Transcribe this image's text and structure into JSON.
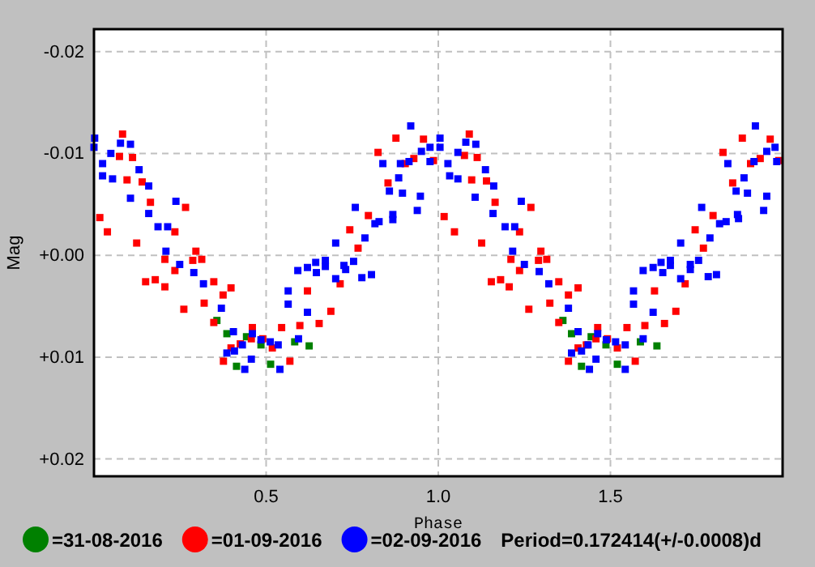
{
  "chart_data": {
    "type": "scatter",
    "xlabel": "Phase",
    "ylabel": "Mag",
    "xlim": [
      0,
      2
    ],
    "ylim": [
      0.0217,
      -0.0222
    ],
    "xticks": [
      0.5,
      {
        "value": 1,
        "label": "1.0"
      },
      1.5
    ],
    "yticks": [
      {
        "value": -0.02,
        "label": "-0.02"
      },
      {
        "value": -0.01,
        "label": "-0.01"
      },
      {
        "value": 0,
        "label": "+0.00"
      },
      {
        "value": 0.01,
        "label": "+0.01"
      },
      {
        "value": 0.02,
        "label": "+0.02"
      }
    ],
    "grid": true,
    "legend": "bottom",
    "marker": "square",
    "annotations": [
      "Period=0.172414(+/-0.0008)d"
    ],
    "series": [
      {
        "name": "=31-08-2016",
        "color": "#008000",
        "x": [
          0.357,
          0.386,
          0.443,
          0.485,
          0.414,
          0.513,
          0.583,
          0.625,
          1.362,
          1.387,
          1.444,
          1.487,
          1.416,
          1.52,
          1.587,
          1.635
        ],
        "values": [
          0.0064,
          0.0077,
          0.008,
          0.0088,
          0.0109,
          0.0107,
          0.0085,
          0.0089,
          0.0064,
          0.0077,
          0.008,
          0.0088,
          0.0109,
          0.0107,
          0.0085,
          0.0089
        ]
      },
      {
        "name": "=01-09-2016",
        "color": "#ff0000",
        "x": [
          0.083,
          0.074,
          0.112,
          0.096,
          0.14,
          0.164,
          0.266,
          0.017,
          0.039,
          0.124,
          0.235,
          0.296,
          0.313,
          0.287,
          0.206,
          0.235,
          0.348,
          0.398,
          0.375,
          0.15,
          0.178,
          0.206,
          0.261,
          0.32,
          0.348,
          0.46,
          0.457,
          0.49,
          0.518,
          0.425,
          0.398,
          0.376,
          0.545,
          0.569,
          0.598,
          0.62,
          0.654,
          0.715,
          0.688,
          0.743,
          0.767,
          0.797,
          0.854,
          0.825,
          0.877,
          0.957,
          0.904,
          0.929,
          0.986,
          1.09,
          1.076,
          1.113,
          1.097,
          1.14,
          1.165,
          1.017,
          1.047,
          1.126,
          1.269,
          1.236,
          1.211,
          1.236,
          1.181,
          1.154,
          1.206,
          1.298,
          1.291,
          1.315,
          1.263,
          1.324,
          1.35,
          1.406,
          1.378,
          1.35,
          1.378,
          1.406,
          1.43,
          1.463,
          1.458,
          1.491,
          1.52,
          1.548,
          1.572,
          1.6,
          1.628,
          1.657,
          1.69,
          1.717,
          1.77,
          1.746,
          1.798,
          1.855,
          1.827,
          1.883,
          1.964,
          1.907,
          1.935,
          1.989
        ],
        "values": [
          -0.0119,
          -0.0097,
          -0.0096,
          -0.0074,
          -0.0072,
          -0.0052,
          -0.0047,
          -0.0037,
          -0.0023,
          -0.0012,
          -0.0023,
          -0.0004,
          0.0004,
          0.0005,
          0.0004,
          0.0015,
          0.0026,
          0.0032,
          0.0039,
          0.0026,
          0.0024,
          0.0031,
          0.0053,
          0.0047,
          0.0066,
          0.0071,
          0.0082,
          0.0082,
          0.0091,
          0.0087,
          0.0091,
          0.0104,
          0.0071,
          0.0104,
          0.0069,
          0.0035,
          0.0067,
          0.0028,
          0.0055,
          -0.0025,
          -0.0007,
          -0.0039,
          -0.0071,
          -0.0101,
          -0.0115,
          -0.0114,
          -0.009,
          -0.0095,
          -0.0093,
          -0.0119,
          -0.0098,
          -0.0096,
          -0.0074,
          -0.0073,
          -0.0052,
          -0.0038,
          -0.0023,
          -0.0012,
          -0.0047,
          -0.0023,
          0.0004,
          0.0015,
          0.0024,
          0.0026,
          0.0031,
          -0.0004,
          0.0005,
          0.0004,
          0.0053,
          0.0047,
          0.0026,
          0.0032,
          0.0039,
          0.0066,
          0.0104,
          0.0091,
          0.0088,
          0.0071,
          0.0082,
          0.0082,
          0.0091,
          0.0071,
          0.0104,
          0.0069,
          0.0035,
          0.0067,
          0.0055,
          0.0028,
          -0.0007,
          -0.0025,
          -0.0039,
          -0.0071,
          -0.0101,
          -0.0115,
          -0.0114,
          -0.009,
          -0.0095,
          -0.0093
        ]
      },
      {
        "name": "=02-09-2016",
        "color": "#0000ff",
        "x": [
          0.002,
          0,
          0.049,
          0.077,
          0.106,
          0.025,
          0.025,
          0.054,
          0.131,
          0.159,
          0.106,
          0.159,
          0.238,
          0.186,
          0.214,
          0.209,
          0.249,
          0.29,
          0.318,
          0.37,
          0.405,
          0.386,
          0.408,
          0.431,
          0.46,
          0.485,
          0.512,
          0.457,
          0.438,
          0.535,
          0.54,
          0.564,
          0.564,
          0.592,
          0.62,
          0.644,
          0.646,
          0.62,
          0.594,
          0.702,
          0.672,
          0.672,
          0.702,
          0.726,
          0.731,
          0.754,
          0.778,
          0.806,
          0.787,
          0.759,
          0.816,
          0.828,
          0.868,
          0.868,
          0.839,
          0.858,
          0.885,
          0.896,
          0.92,
          0.951,
          0.976,
          1.005,
          1.005,
          0.89,
          0.915,
          0.976,
          0.939,
          0.948,
          1.028,
          1.033,
          1.057,
          1.057,
          1.08,
          1.109,
          1.107,
          1.137,
          1.161,
          1.159,
          1.194,
          1.222,
          1.216,
          1.241,
          1.25,
          1.293,
          1.321,
          1.378,
          1.406,
          1.387,
          1.416,
          1.435,
          1.463,
          1.488,
          1.515,
          1.458,
          1.439,
          1.543,
          1.543,
          1.567,
          1.567,
          1.595,
          1.624,
          1.647,
          1.652,
          1.674,
          1.674,
          1.624,
          1.595,
          1.704,
          1.704,
          1.732,
          1.732,
          1.756,
          1.784,
          1.808,
          1.789,
          1.765,
          1.817,
          1.836,
          1.869,
          1.872,
          1.841,
          1.865,
          1.888,
          1.898,
          1.921,
          1.954,
          1.978,
          1.917,
          1.954,
          1.945,
          1.983
        ],
        "values": [
          -0.0115,
          -0.0106,
          -0.01,
          -0.011,
          -0.0109,
          -0.009,
          -0.0078,
          -0.0075,
          -0.0084,
          -0.0068,
          -0.0056,
          -0.0041,
          -0.0053,
          -0.0028,
          -0.0028,
          -0.0004,
          0.0009,
          0.0017,
          0.0028,
          0.0052,
          0.0075,
          0.0096,
          0.0094,
          0.0088,
          0.0077,
          0.0083,
          0.0085,
          0.0102,
          0.0112,
          0.0088,
          0.0112,
          0.0035,
          0.0048,
          0.0015,
          0.0012,
          0.0007,
          0.0017,
          0.0056,
          0.0082,
          -0.0012,
          0.0005,
          0.0011,
          0.0023,
          0.001,
          0.0014,
          0.0006,
          0.0022,
          0.0019,
          -0.0017,
          -0.0047,
          -0.0031,
          -0.0033,
          -0.004,
          -0.0035,
          -0.009,
          -0.0063,
          -0.0076,
          -0.0061,
          -0.0127,
          -0.0102,
          -0.0106,
          -0.0115,
          -0.0106,
          -0.009,
          -0.0092,
          -0.0092,
          -0.0044,
          -0.0058,
          -0.009,
          -0.0078,
          -0.0075,
          -0.0101,
          -0.0111,
          -0.0109,
          -0.0057,
          -0.0084,
          -0.0068,
          -0.0041,
          -0.0028,
          -0.0028,
          -0.0004,
          -0.0053,
          0.0009,
          0.0016,
          0.0028,
          0.0052,
          0.0075,
          0.0096,
          0.0094,
          0.0088,
          0.0077,
          0.0083,
          0.0085,
          0.0102,
          0.0112,
          0.0088,
          0.0112,
          0.0035,
          0.0048,
          0.0015,
          0.0012,
          0.0007,
          0.0017,
          0.0005,
          0.001,
          0.0056,
          0.0082,
          -0.0012,
          0.0023,
          0.0009,
          0.0014,
          0.0005,
          0.0021,
          0.0019,
          -0.0017,
          -0.0047,
          -0.0031,
          -0.0033,
          -0.004,
          -0.0036,
          -0.009,
          -0.0063,
          -0.0076,
          -0.0061,
          -0.0127,
          -0.0102,
          -0.0106,
          -0.0092,
          -0.0058,
          -0.0044,
          -0.0092
        ]
      }
    ]
  }
}
